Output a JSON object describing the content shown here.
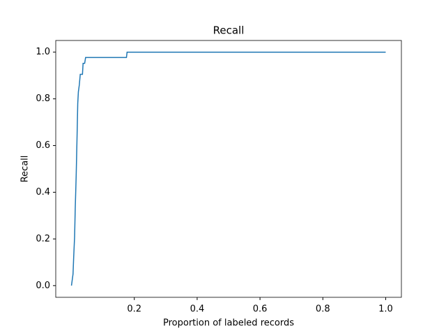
{
  "chart_data": {
    "type": "line",
    "title": "Recall",
    "x_label": "Proportion of labeled records",
    "y_label": "Recall",
    "x": [
      0.0,
      0.005,
      0.007,
      0.01,
      0.012,
      0.015,
      0.018,
      0.02,
      0.022,
      0.025,
      0.028,
      0.035,
      0.037,
      0.042,
      0.045,
      0.175,
      0.177,
      1.0
    ],
    "series": [
      {
        "name": "Recall",
        "color": "#1f77b4",
        "values": [
          0.0,
          0.05,
          0.12,
          0.21,
          0.33,
          0.47,
          0.65,
          0.78,
          0.83,
          0.86,
          0.905,
          0.905,
          0.952,
          0.952,
          0.977,
          0.977,
          1.0,
          1.0
        ]
      }
    ],
    "xlim": [
      -0.05,
      1.05
    ],
    "ylim": [
      -0.05,
      1.05
    ],
    "xticks": [
      0.2,
      0.4,
      0.6,
      0.8,
      {
        "value": 1.0,
        "label": "1.0"
      }
    ],
    "yticks": [
      {
        "value": 0.0,
        "label": "0.0"
      },
      0.2,
      0.4,
      0.6,
      0.8,
      {
        "value": 1.0,
        "label": "1.0"
      }
    ],
    "grid": false
  }
}
